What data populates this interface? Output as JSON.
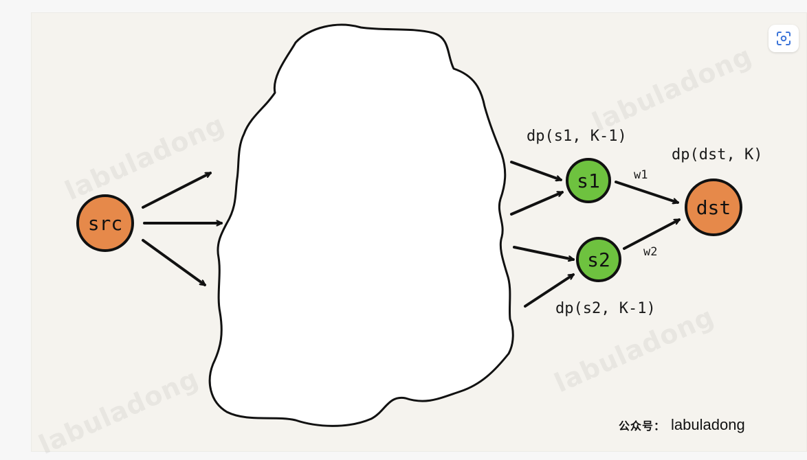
{
  "diagram": {
    "nodes": {
      "src": "src",
      "s1": "s1",
      "s2": "s2",
      "dst": "dst"
    },
    "labels": {
      "dp_s1": "dp(s1, K-1)",
      "dp_dst": "dp(dst, K)",
      "dp_s2": "dp(s2, K-1)",
      "w1": "w1",
      "w2": "w2"
    },
    "colors": {
      "src_fill": "#e6894a",
      "dst_fill": "#e6894a",
      "s_fill": "#6ec23f",
      "stroke": "#111111"
    }
  },
  "watermark": "labuladong",
  "credit": {
    "prefix": "公众号：",
    "name": "labuladong"
  },
  "toolbar": {
    "scan_icon": "scan-icon"
  }
}
